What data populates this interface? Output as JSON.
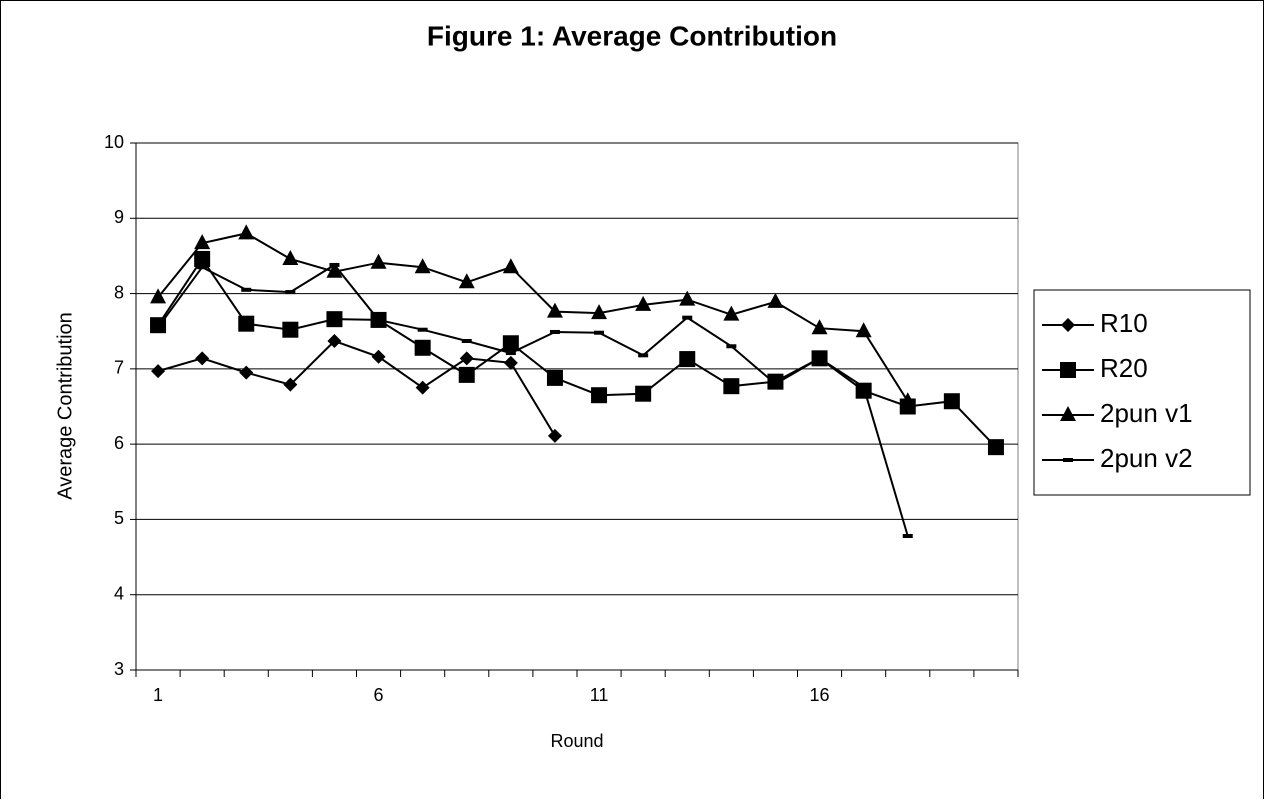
{
  "chart_data": {
    "type": "line",
    "title": "Figure 1:  Average Contribution",
    "x_label": "Round",
    "y_label": "Average Contribution",
    "categories": [
      "1",
      null,
      null,
      null,
      null,
      "6",
      null,
      null,
      null,
      null,
      "11",
      null,
      null,
      null,
      null,
      "16",
      null,
      null,
      null,
      null
    ],
    "ylim": [
      3,
      10
    ],
    "yticks": [
      3,
      4,
      5,
      6,
      7,
      8,
      9,
      10
    ],
    "grid": true,
    "legend": "right",
    "series": [
      {
        "name": "R10",
        "color": "#000000",
        "marker": "diamond",
        "values": [
          6.97,
          7.14,
          6.95,
          6.79,
          7.37,
          7.16,
          6.75,
          7.14,
          7.08,
          6.11,
          null,
          null,
          null,
          null,
          null,
          null,
          null,
          null,
          null,
          null
        ]
      },
      {
        "name": "R20",
        "color": "#000000",
        "marker": "square",
        "values": [
          7.58,
          8.46,
          7.6,
          7.52,
          7.66,
          7.65,
          7.28,
          6.92,
          7.34,
          6.88,
          6.65,
          6.67,
          7.13,
          6.77,
          6.83,
          7.14,
          6.71,
          6.5,
          6.57,
          5.96
        ]
      },
      {
        "name": "2pun v1",
        "color": "#000000",
        "marker": "triangle",
        "values": [
          7.95,
          8.67,
          8.8,
          8.46,
          8.29,
          8.41,
          8.35,
          8.15,
          8.35,
          7.76,
          7.74,
          7.85,
          7.92,
          7.72,
          7.89,
          7.54,
          7.5,
          6.57,
          null,
          null
        ]
      },
      {
        "name": "2pun v2",
        "color": "#000000",
        "marker": "dash",
        "values": [
          7.55,
          8.35,
          8.05,
          8.02,
          8.38,
          7.65,
          7.52,
          7.37,
          7.21,
          7.49,
          7.48,
          7.18,
          7.68,
          7.3,
          6.8,
          7.14,
          6.76,
          4.78,
          null,
          null
        ]
      }
    ]
  }
}
